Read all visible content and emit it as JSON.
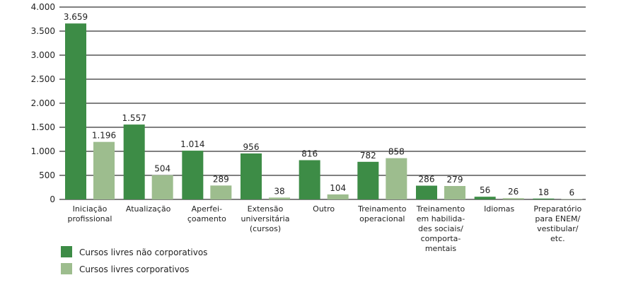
{
  "chart_data": {
    "type": "bar",
    "ylim": [
      0,
      4000
    ],
    "yticks": [
      0,
      500,
      1000,
      1500,
      2000,
      2500,
      3000,
      3500,
      4000
    ],
    "ytick_labels": [
      "0",
      "500",
      "1.000",
      "1.500",
      "2.000",
      "2.500",
      "3.000",
      "3.500",
      "4.000"
    ],
    "grid": true,
    "legend_position": "bottom-left",
    "categories": [
      [
        "Iniciação",
        "profissional"
      ],
      [
        "Atualização"
      ],
      [
        "Aperfei-",
        "çoamento"
      ],
      [
        "Extensão",
        "universitária",
        "(cursos)"
      ],
      [
        "Outro"
      ],
      [
        "Treinamento",
        "operacional"
      ],
      [
        "Treinamento",
        "em habilida-",
        "des sociais/",
        "comporta-",
        "mentais"
      ],
      [
        "Idiomas"
      ],
      [
        "Preparatório",
        "para ENEM/",
        "vestibular/",
        "etc."
      ]
    ],
    "series": [
      {
        "name": "Cursos livres não corporativos",
        "color": "#3d8c46",
        "values": [
          3659,
          1557,
          1014,
          956,
          816,
          782,
          286,
          56,
          18
        ],
        "labels": [
          "3.659",
          "1.557",
          "1.014",
          "956",
          "816",
          "782",
          "286",
          "56",
          "18"
        ]
      },
      {
        "name": "Cursos livres corporativos",
        "color": "#9dbd8e",
        "values": [
          1196,
          504,
          289,
          38,
          104,
          858,
          279,
          26,
          6
        ],
        "labels": [
          "1.196",
          "504",
          "289",
          "38",
          "104",
          "858",
          "279",
          "26",
          "6"
        ]
      }
    ]
  }
}
